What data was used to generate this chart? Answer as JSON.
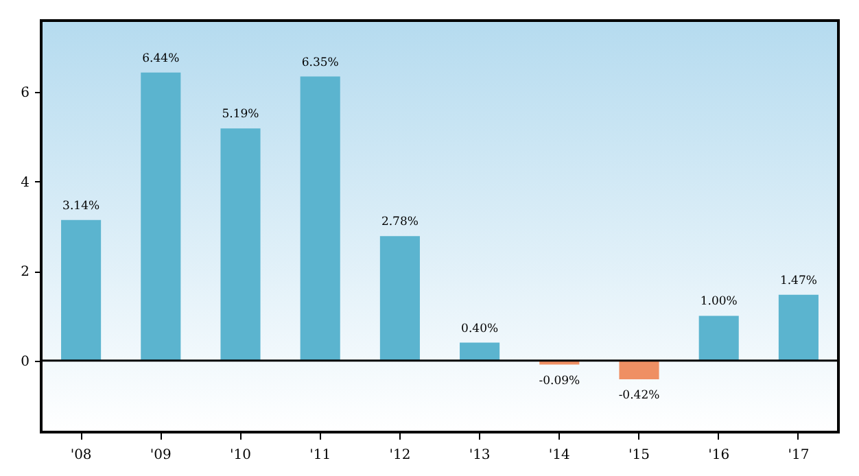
{
  "chart_data": {
    "type": "bar",
    "categories": [
      "'08",
      "'09",
      "'10",
      "'11",
      "'12",
      "'13",
      "'14",
      "'15",
      "'16",
      "'17"
    ],
    "values": [
      3.14,
      6.44,
      5.19,
      6.35,
      2.78,
      0.4,
      -0.09,
      -0.42,
      1.0,
      1.47
    ],
    "colors": [
      "#5bb4cf",
      "#5bb4cf",
      "#5bb4cf",
      "#5bb4cf",
      "#5bb4cf",
      "#5bb4cf",
      "#ef8f63",
      "#ef8f63",
      "#5bb4cf",
      "#5bb4cf"
    ],
    "value_labels": [
      "3.14%",
      "6.44%",
      "5.19%",
      "6.35%",
      "2.78%",
      "0.40%",
      "-0.09%",
      "-0.42%",
      "1.00%",
      "1.47%"
    ],
    "ylim": [
      -1.6,
      7.6
    ],
    "yticks": [
      0,
      2,
      4,
      6
    ],
    "ref_lines": [
      {
        "axis": "y",
        "value": 0,
        "color": "#000000"
      }
    ],
    "grid": false
  }
}
